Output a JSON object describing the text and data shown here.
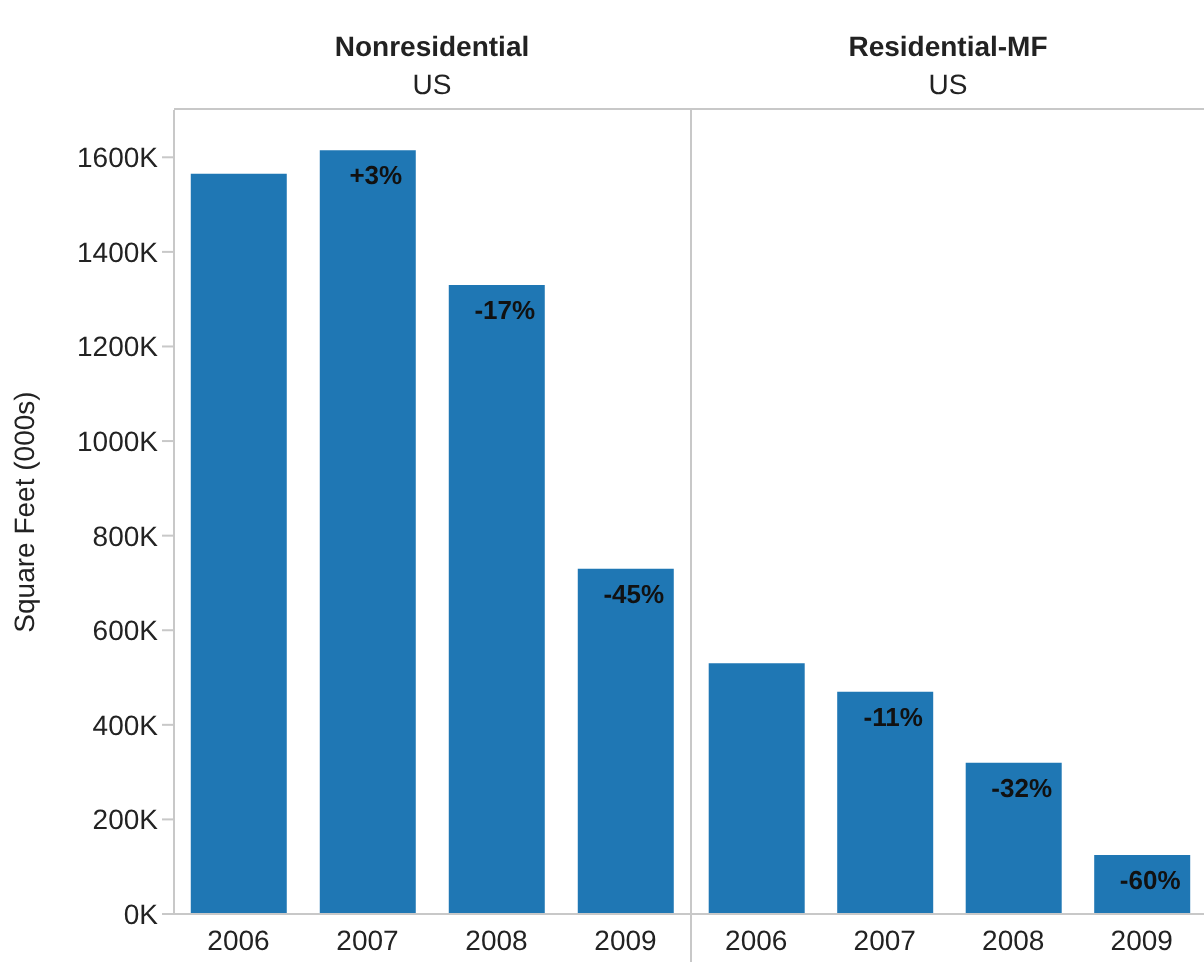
{
  "chart_data": [
    {
      "type": "bar",
      "title": "Nonresidential",
      "subtitle": "US",
      "ylabel": "Square Feet (000s)",
      "categories": [
        "2006",
        "2007",
        "2008",
        "2009"
      ],
      "values": [
        1565,
        1615,
        1330,
        730
      ],
      "color": "#1f77b4",
      "annotations": [
        {
          "text": "+3%",
          "x": "2007",
          "y": 1615
        },
        {
          "text": "-17%",
          "x": "2008",
          "y": 1330
        },
        {
          "text": "-45%",
          "x": "2009",
          "y": 730
        }
      ],
      "ylim": [
        0,
        1700
      ],
      "yticks": [
        {
          "value": 0,
          "label": "0K"
        },
        {
          "value": 200,
          "label": "200K"
        },
        {
          "value": 400,
          "label": "400K"
        },
        {
          "value": 600,
          "label": "600K"
        },
        {
          "value": 800,
          "label": "800K"
        },
        {
          "value": 1000,
          "label": "1000K"
        },
        {
          "value": 1200,
          "label": "1200K"
        },
        {
          "value": 1400,
          "label": "1400K"
        },
        {
          "value": 1600,
          "label": "1600K"
        }
      ],
      "legend": false
    },
    {
      "type": "bar",
      "title": "Residential-MF",
      "subtitle": "US",
      "categories": [
        "2006",
        "2007",
        "2008",
        "2009"
      ],
      "values": [
        530,
        470,
        320,
        125
      ],
      "color": "#1f77b4",
      "annotations": [
        {
          "text": "-11%",
          "x": "2007",
          "y": 470
        },
        {
          "text": "-32%",
          "x": "2008",
          "y": 320
        },
        {
          "text": "-60%",
          "x": "2009",
          "y": 125
        }
      ],
      "ylim": [
        0,
        1700
      ],
      "tick_labels": "x",
      "legend": false
    }
  ]
}
